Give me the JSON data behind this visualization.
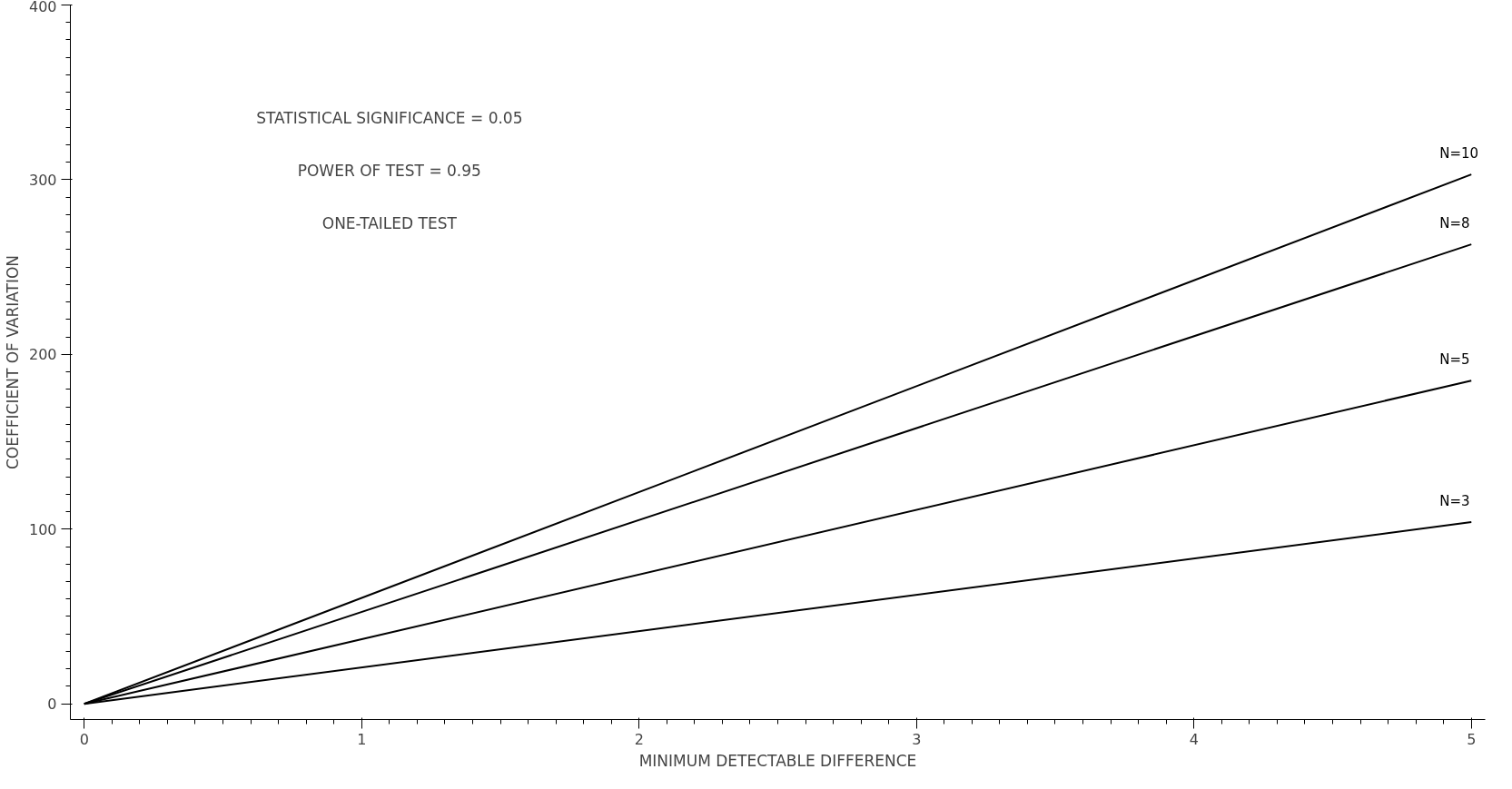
{
  "chart_data": {
    "type": "line",
    "xlabel": "MINIMUM DETECTABLE DIFFERENCE",
    "ylabel": "COEFFICIENT OF VARIATION",
    "x": [
      0,
      5
    ],
    "xlim": [
      -0.05,
      5.05
    ],
    "ylim": [
      -9,
      400
    ],
    "xticks": [
      0,
      1,
      2,
      3,
      4,
      5
    ],
    "yticks": [
      0,
      100,
      200,
      300,
      400
    ],
    "series": [
      {
        "name": "N=10",
        "color": "#000000",
        "values": [
          0,
          303
        ]
      },
      {
        "name": "N=8",
        "color": "#000000",
        "values": [
          0,
          263
        ]
      },
      {
        "name": "N=5",
        "color": "#000000",
        "values": [
          0,
          185
        ]
      },
      {
        "name": "N=3",
        "color": "#000000",
        "values": [
          0,
          104
        ]
      }
    ],
    "annotations": [
      "STATISTICAL SIGNIFICANCE = 0.05",
      "POWER OF TEST = 0.95",
      "ONE-TAILED TEST"
    ],
    "grid": false,
    "legend": false,
    "marker": "none",
    "line_style": "solid"
  }
}
